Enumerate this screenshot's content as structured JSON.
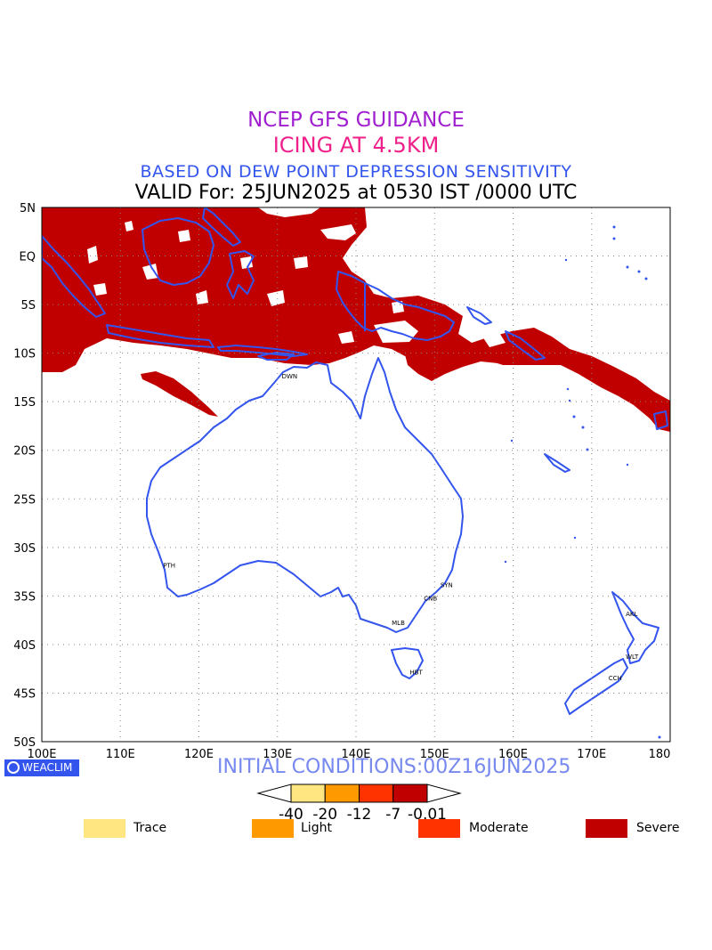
{
  "header": {
    "line1": "NCEP GFS GUIDANCE",
    "line2": "ICING AT 4.5KM",
    "line3": "BASED ON DEW POINT DEPRESSION SENSITIVITY",
    "line4": "VALID For: 25JUN2025 at 0530 IST /0000 UTC"
  },
  "colors": {
    "line1": "#a020d0",
    "line2": "#f0208a",
    "line3": "#3355ee",
    "line4": "#000000",
    "coast": "#3355ee",
    "icing_severe": "#c00000",
    "icing_moderate": "#ff3300",
    "icing_light": "#ff9900",
    "icing_trace": "#ffe680",
    "initial_conditions": "#7788ee"
  },
  "map": {
    "lat_labels": [
      "5N",
      "EQ",
      "5S",
      "10S",
      "15S",
      "20S",
      "25S",
      "30S",
      "35S",
      "40S",
      "45S",
      "50S"
    ],
    "lon_labels": [
      "100E",
      "110E",
      "120E",
      "130E",
      "140E",
      "150E",
      "160E",
      "170E",
      "180"
    ],
    "cities": [
      {
        "code": "DWN",
        "lon": 131.0,
        "lat": -12.4
      },
      {
        "code": "PTH",
        "lon": 115.9,
        "lat": -31.9
      },
      {
        "code": "SYN",
        "lon": 151.2,
        "lat": -33.9
      },
      {
        "code": "CNB",
        "lon": 149.1,
        "lat": -35.3
      },
      {
        "code": "MLB",
        "lon": 145.0,
        "lat": -37.8
      },
      {
        "code": "HBT",
        "lon": 147.3,
        "lat": -42.9
      },
      {
        "code": "AKL",
        "lon": 174.8,
        "lat": -36.9
      },
      {
        "code": "WLT",
        "lon": 174.8,
        "lat": -41.3
      },
      {
        "code": "CCH",
        "lon": 172.6,
        "lat": -43.5
      }
    ]
  },
  "branding": {
    "logo_text": "WEACLIM",
    "logo_icon": "circle-c-icon"
  },
  "initial_conditions": "INITIAL CONDITIONS:00Z16JUN2025",
  "colorbar": {
    "ticks": [
      "-40",
      "-20",
      "-12",
      "-7",
      "-0.01"
    ],
    "colors": [
      "#ffe680",
      "#ff9900",
      "#ff3300",
      "#c00000"
    ]
  },
  "legend": [
    {
      "label": "Trace",
      "color": "#ffe680"
    },
    {
      "label": "Light",
      "color": "#ff9900"
    },
    {
      "label": "Moderate",
      "color": "#ff3300"
    },
    {
      "label": "Severe",
      "color": "#c00000"
    }
  ]
}
